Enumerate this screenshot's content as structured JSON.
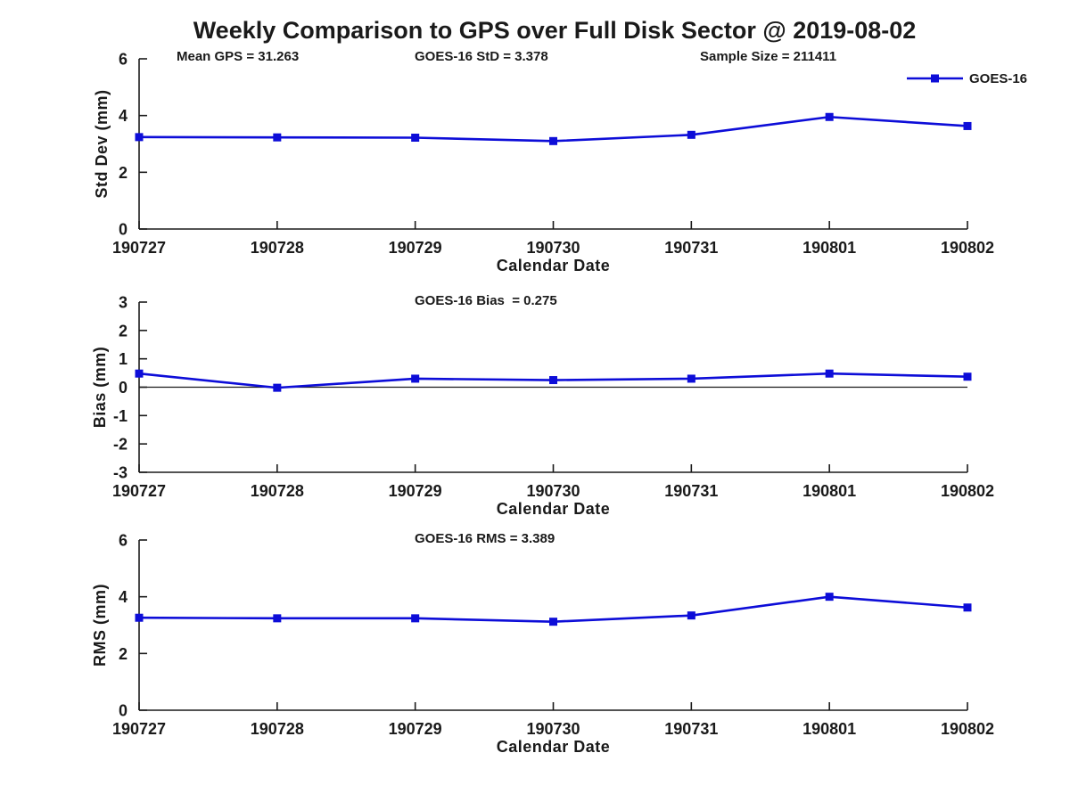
{
  "title": "Weekly Comparison to GPS over Full Disk Sector @ 2019-08-02",
  "legend": {
    "label": "GOES-16",
    "color": "#0d0dd8",
    "marker": "filled-square-on-line"
  },
  "chart_data": [
    {
      "id": "std-dev-vs-date",
      "type": "line",
      "x_categories": [
        "190727",
        "190728",
        "190729",
        "190730",
        "190731",
        "190801",
        "190802"
      ],
      "series": [
        {
          "name": "GOES-16",
          "color": "#0d0dd8",
          "marker": "square",
          "values": [
            3.24,
            3.23,
            3.22,
            3.1,
            3.32,
            3.95,
            3.63
          ]
        }
      ],
      "ylabel": "Std Dev (mm)",
      "xlabel": "Calendar Date",
      "ylim": [
        0,
        6
      ],
      "yticks": [
        0,
        2,
        4,
        6
      ],
      "grid": false,
      "legend_position": "top-right-outside",
      "annotations": [
        "Mean GPS = 31.263",
        "GOES-16 StD = 3.378",
        "Sample Size = 211411"
      ]
    },
    {
      "id": "bias-vs-date",
      "type": "line",
      "x_categories": [
        "190727",
        "190728",
        "190729",
        "190730",
        "190731",
        "190801",
        "190802"
      ],
      "series": [
        {
          "name": "GOES-16",
          "color": "#0d0dd8",
          "marker": "square",
          "values": [
            0.48,
            -0.02,
            0.3,
            0.25,
            0.3,
            0.48,
            0.37
          ]
        }
      ],
      "ylabel": "Bias (mm)",
      "xlabel": "Calendar Date",
      "ylim": [
        -3,
        3
      ],
      "yticks": [
        -3,
        -2,
        -1,
        0,
        1,
        2,
        3
      ],
      "zero_line": true,
      "grid": false,
      "annotations": [
        "GOES-16 Bias  = 0.275"
      ]
    },
    {
      "id": "rms-vs-date",
      "type": "line",
      "x_categories": [
        "190727",
        "190728",
        "190729",
        "190730",
        "190731",
        "190801",
        "190802"
      ],
      "series": [
        {
          "name": "GOES-16",
          "color": "#0d0dd8",
          "marker": "square",
          "values": [
            3.26,
            3.24,
            3.24,
            3.12,
            3.34,
            4.0,
            3.62
          ]
        }
      ],
      "ylabel": "RMS (mm)",
      "xlabel": "Calendar Date",
      "ylim": [
        0,
        6
      ],
      "yticks": [
        0,
        2,
        4,
        6
      ],
      "grid": false,
      "annotations": [
        "GOES-16 RMS = 3.389"
      ]
    }
  ]
}
